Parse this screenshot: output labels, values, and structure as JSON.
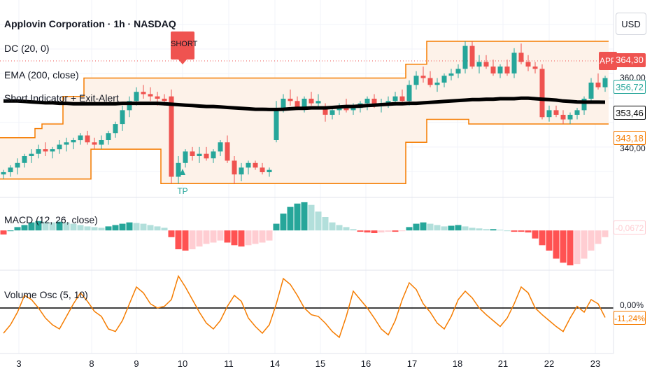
{
  "header": {
    "symbol_title": "Applovin Corporation · 1h · NASDAQ",
    "indicator_dc": "DC (20, 0)",
    "indicator_ema": "EMA (200, close)",
    "indicator_short": "Short Indicator + Exit-Alert",
    "indicator_macd": "MACD (12, 26, close)",
    "indicator_vol": "Volume Osc (5, 10)"
  },
  "currency_button": "USD",
  "price_labels": {
    "app_tag": "APP",
    "last": "364,30",
    "dc_upper_mid": "356,72",
    "ema": "353,46",
    "dc_lower": "343,18",
    "macd_value": "-0,0672",
    "vol_zero": "0,00%",
    "vol_value": "-11,24%",
    "partial_top": "360,00",
    "partial_bottom": "340,00"
  },
  "markers": {
    "short_signal": "SHORT",
    "tp_signal": "TP"
  },
  "colors": {
    "up": "#26a69a",
    "down": "#ef5350",
    "donchian": "#f57c00",
    "ema": "#000000",
    "macd_up_strong": "#26a69a",
    "macd_up_weak": "#b2dfdb",
    "macd_down_strong": "#ff5252",
    "macd_down_weak": "#ffcdd2"
  },
  "chart_data": {
    "type": "candlestick",
    "x_ticks": [
      "3",
      "8",
      "9",
      "10",
      "11",
      "14",
      "15",
      "16",
      "17",
      "18",
      "21",
      "22",
      "23"
    ],
    "y_range": [
      312,
      398
    ],
    "candles_ohlc": [
      [
        322,
        324,
        320,
        323
      ],
      [
        323,
        326,
        321,
        325
      ],
      [
        325,
        329,
        322,
        327
      ],
      [
        327,
        331,
        325,
        330
      ],
      [
        330,
        333,
        327,
        331
      ],
      [
        331,
        335,
        329,
        333
      ],
      [
        333,
        336,
        330,
        332
      ],
      [
        332,
        334,
        329,
        333
      ],
      [
        333,
        337,
        331,
        335
      ],
      [
        335,
        338,
        332,
        336
      ],
      [
        336,
        338,
        333,
        337
      ],
      [
        337,
        340,
        335,
        339
      ],
      [
        339,
        341,
        335,
        336
      ],
      [
        336,
        338,
        333,
        335
      ],
      [
        335,
        339,
        333,
        337
      ],
      [
        337,
        341,
        335,
        340
      ],
      [
        340,
        345,
        338,
        344
      ],
      [
        344,
        352,
        341,
        350
      ],
      [
        350,
        356,
        347,
        354
      ],
      [
        354,
        360,
        352,
        358
      ],
      [
        358,
        361,
        355,
        357
      ],
      [
        357,
        360,
        354,
        356
      ],
      [
        356,
        358,
        352,
        355
      ],
      [
        355,
        357,
        352,
        354
      ],
      [
        356,
        359,
        318,
        321
      ],
      [
        321,
        330,
        318,
        327
      ],
      [
        327,
        333,
        325,
        332
      ],
      [
        332,
        334,
        328,
        330
      ],
      [
        330,
        334,
        327,
        331
      ],
      [
        331,
        334,
        328,
        329
      ],
      [
        329,
        333,
        327,
        332
      ],
      [
        332,
        337,
        330,
        336
      ],
      [
        336,
        339,
        327,
        328
      ],
      [
        328,
        330,
        318,
        322
      ],
      [
        322,
        327,
        319,
        325
      ],
      [
        325,
        328,
        322,
        327
      ],
      [
        327,
        328,
        324,
        325
      ],
      [
        325,
        327,
        322,
        323
      ],
      [
        323,
        325,
        321,
        324
      ],
      [
        337,
        354,
        336,
        351
      ],
      [
        351,
        357,
        349,
        355
      ],
      [
        355,
        359,
        352,
        354
      ],
      [
        354,
        356,
        350,
        351
      ],
      [
        351,
        356,
        349,
        355
      ],
      [
        355,
        358,
        352,
        353
      ],
      [
        353,
        357,
        351,
        354
      ],
      [
        351,
        353,
        345,
        348
      ],
      [
        348,
        351,
        346,
        350
      ],
      [
        350,
        353,
        348,
        352
      ],
      [
        352,
        355,
        349,
        350
      ],
      [
        350,
        353,
        348,
        351
      ],
      [
        351,
        354,
        349,
        353
      ],
      [
        353,
        356,
        350,
        355
      ],
      [
        355,
        357,
        351,
        352
      ],
      [
        352,
        355,
        349,
        353
      ],
      [
        353,
        356,
        351,
        354
      ],
      [
        354,
        358,
        352,
        356
      ],
      [
        356,
        359,
        353,
        354
      ],
      [
        354,
        363,
        352,
        361
      ],
      [
        361,
        367,
        359,
        365
      ],
      [
        365,
        369,
        362,
        364
      ],
      [
        364,
        367,
        360,
        361
      ],
      [
        361,
        364,
        358,
        362
      ],
      [
        362,
        366,
        360,
        365
      ],
      [
        365,
        368,
        363,
        366
      ],
      [
        366,
        370,
        364,
        368
      ],
      [
        368,
        380,
        366,
        378
      ],
      [
        378,
        380,
        368,
        369
      ],
      [
        369,
        374,
        366,
        371
      ],
      [
        371,
        374,
        368,
        369
      ],
      [
        369,
        372,
        365,
        366
      ],
      [
        366,
        370,
        364,
        369
      ],
      [
        369,
        372,
        365,
        366
      ],
      [
        366,
        377,
        364,
        375
      ],
      [
        375,
        379,
        370,
        371
      ],
      [
        371,
        374,
        367,
        369
      ],
      [
        369,
        371,
        366,
        368
      ],
      [
        368,
        370,
        346,
        347
      ],
      [
        347,
        352,
        345,
        350
      ],
      [
        350,
        352,
        347,
        348
      ],
      [
        348,
        350,
        344,
        346
      ],
      [
        346,
        349,
        344,
        348
      ],
      [
        348,
        351,
        346,
        350
      ],
      [
        350,
        356,
        348,
        355
      ],
      [
        355,
        364,
        353,
        362
      ],
      [
        362,
        366,
        359,
        360
      ],
      [
        360,
        365,
        358,
        364
      ]
    ],
    "donchian_upper": [
      338,
      338,
      338,
      338,
      338,
      342,
      344,
      344,
      344,
      356,
      356,
      356,
      364,
      364,
      364,
      364,
      364,
      364,
      364,
      364,
      364,
      364,
      364,
      364,
      364,
      364,
      364,
      364,
      364,
      364,
      364,
      364,
      364,
      364,
      364,
      364,
      364,
      364,
      364,
      364,
      364,
      364,
      364,
      364,
      364,
      364,
      364,
      364,
      364,
      364,
      364,
      364,
      364,
      364,
      364,
      364,
      364,
      364,
      370,
      370,
      370,
      380,
      380,
      380,
      380,
      380,
      380,
      380,
      380,
      380,
      380,
      380,
      380,
      380,
      380,
      380,
      380,
      380,
      380,
      380,
      380,
      380,
      380,
      380,
      380,
      380,
      380
    ],
    "donchian_lower": [
      320,
      320,
      320,
      320,
      320,
      320,
      320,
      320,
      320,
      320,
      320,
      320,
      320,
      333,
      333,
      333,
      333,
      333,
      333,
      333,
      333,
      333,
      333,
      318,
      318,
      318,
      318,
      318,
      318,
      318,
      318,
      318,
      318,
      318,
      318,
      318,
      318,
      318,
      318,
      318,
      318,
      318,
      318,
      318,
      318,
      318,
      318,
      318,
      318,
      318,
      318,
      318,
      318,
      318,
      318,
      318,
      318,
      318,
      336,
      336,
      336,
      346,
      346,
      346,
      346,
      346,
      346,
      344,
      344,
      344,
      344,
      344,
      344,
      344,
      344,
      344,
      344,
      344,
      344,
      344,
      344,
      344,
      344,
      344,
      344,
      344,
      344
    ],
    "ema_200": [
      354,
      354,
      354,
      353.8,
      353.6,
      353.4,
      353.2,
      353.2,
      353.0,
      353.0,
      352.8,
      352.8,
      352.8,
      352.8,
      352.8,
      352.8,
      352.8,
      353.0,
      353.0,
      353.0,
      353.0,
      353.0,
      353.0,
      352.8,
      352.6,
      352.4,
      352.2,
      352.0,
      351.8,
      351.6,
      351.6,
      351.4,
      351.2,
      351.0,
      350.8,
      350.6,
      350.4,
      350.4,
      350.3,
      350.3,
      350.4,
      350.6,
      350.8,
      350.8,
      351.0,
      351.0,
      351.0,
      351.2,
      351.4,
      351.6,
      351.6,
      351.8,
      352.0,
      352.2,
      352.4,
      352.6,
      352.8,
      352.8,
      353.0,
      353.0,
      353.2,
      353.4,
      353.6,
      353.8,
      354.0,
      354.2,
      354.4,
      354.6,
      354.6,
      354.8,
      354.8,
      355.0,
      355.0,
      355.0,
      355.2,
      355.2,
      355.0,
      354.8,
      354.6,
      354.4,
      354.0,
      353.8,
      353.6,
      353.5,
      353.5,
      353.5,
      353.46
    ],
    "macd_hist_range": [
      -0.55,
      0.45
    ],
    "macd_hist": [
      -0.06,
      0.0,
      0.05,
      0.08,
      0.12,
      0.14,
      0.13,
      0.12,
      0.13,
      0.12,
      0.1,
      0.08,
      0.06,
      0.05,
      0.04,
      0.06,
      0.08,
      0.1,
      0.12,
      0.11,
      0.1,
      0.08,
      0.06,
      0.04,
      -0.1,
      -0.28,
      -0.3,
      -0.28,
      -0.24,
      -0.2,
      -0.18,
      -0.15,
      -0.18,
      -0.22,
      -0.24,
      -0.22,
      -0.2,
      -0.18,
      -0.15,
      0.1,
      0.25,
      0.35,
      0.4,
      0.42,
      0.38,
      0.28,
      0.2,
      0.12,
      0.08,
      0.05,
      0.02,
      -0.02,
      -0.03,
      -0.04,
      -0.03,
      -0.02,
      -0.02,
      -0.01,
      0.05,
      0.1,
      0.12,
      0.1,
      0.08,
      0.06,
      0.07,
      0.08,
      0.06,
      0.04,
      0.03,
      0.02,
      0.02,
      0.01,
      0.0,
      -0.02,
      -0.02,
      -0.03,
      -0.12,
      -0.22,
      -0.3,
      -0.42,
      -0.48,
      -0.52,
      -0.5,
      -0.42,
      -0.3,
      -0.2,
      -0.1
    ],
    "vol_osc_range": [
      -40,
      40
    ],
    "vol_osc": [
      -30,
      -20,
      -5,
      15,
      10,
      0,
      -12,
      -20,
      -25,
      -10,
      5,
      18,
      8,
      -4,
      -10,
      -25,
      -28,
      -15,
      5,
      25,
      18,
      5,
      0,
      2,
      10,
      38,
      25,
      10,
      -5,
      -18,
      -25,
      -15,
      2,
      15,
      8,
      -12,
      -22,
      -30,
      -20,
      5,
      35,
      28,
      15,
      0,
      -8,
      -10,
      -18,
      -28,
      -35,
      -10,
      20,
      10,
      0,
      -12,
      -25,
      -32,
      -15,
      10,
      30,
      22,
      5,
      -5,
      -18,
      -25,
      -10,
      10,
      20,
      12,
      0,
      -8,
      -15,
      -22,
      -12,
      5,
      25,
      18,
      0,
      -8,
      -15,
      -22,
      -28,
      -12,
      2,
      -5,
      10,
      5,
      -11.24
    ]
  }
}
